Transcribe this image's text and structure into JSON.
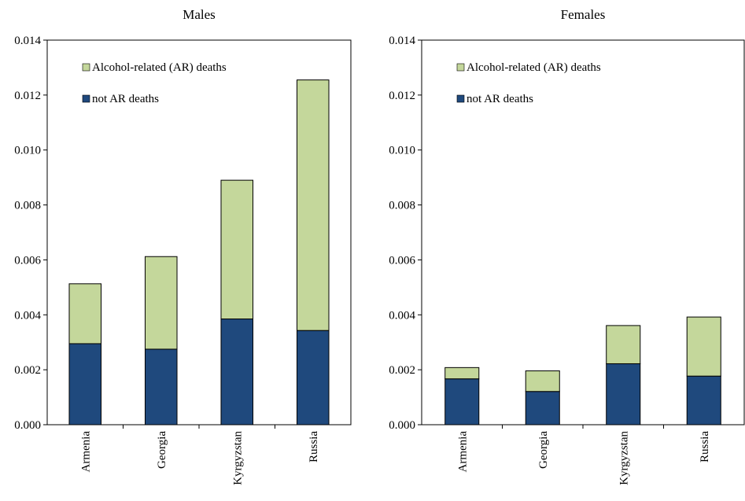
{
  "colors": {
    "ar": "#c4d79b",
    "not_ar": "#1f497d",
    "axis": "#000000",
    "border": "#000000"
  },
  "chart_data": [
    {
      "type": "bar",
      "stacked": true,
      "title": "Males",
      "categories": [
        "Armenia",
        "Georgia",
        "Kyrgyzstan",
        "Russia"
      ],
      "series": [
        {
          "name": "not AR deaths",
          "values": [
            0.00295,
            0.00275,
            0.00385,
            0.00343
          ]
        },
        {
          "name": "Alcohol-related (AR) deaths",
          "values": [
            0.00218,
            0.00337,
            0.00505,
            0.00912
          ]
        }
      ],
      "yticks": [
        "0.000",
        "0.002",
        "0.004",
        "0.006",
        "0.008",
        "0.010",
        "0.012",
        "0.014"
      ],
      "ylim": [
        0,
        0.014
      ],
      "grid": false,
      "legend_position": "top-left",
      "legend_order": [
        "Alcohol-related (AR) deaths",
        "not AR deaths"
      ]
    },
    {
      "type": "bar",
      "stacked": true,
      "title": "Females",
      "categories": [
        "Armenia",
        "Georgia",
        "Kyrgyzstan",
        "Russia"
      ],
      "series": [
        {
          "name": "not AR deaths",
          "values": [
            0.00167,
            0.00121,
            0.00222,
            0.00177
          ]
        },
        {
          "name": "Alcohol-related (AR) deaths",
          "values": [
            0.00041,
            0.00075,
            0.00139,
            0.00215
          ]
        }
      ],
      "yticks": [
        "0.000",
        "0.002",
        "0.004",
        "0.006",
        "0.008",
        "0.010",
        "0.012",
        "0.014"
      ],
      "ylim": [
        0,
        0.014
      ],
      "grid": false,
      "legend_position": "top-left",
      "legend_order": [
        "Alcohol-related (AR) deaths",
        "not AR deaths"
      ]
    }
  ]
}
